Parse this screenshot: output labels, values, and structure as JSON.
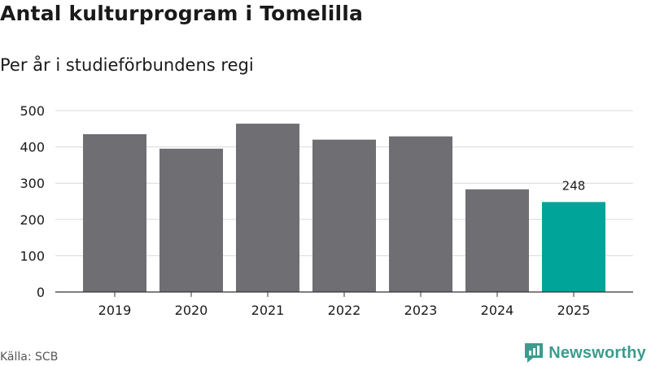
{
  "header": {
    "title": "Antal kulturprogram i Tomelilla",
    "subtitle": "Per år i studieförbundens regi"
  },
  "footer": {
    "source": "Källa: SCB",
    "brand": "Newsworthy",
    "brand_icon": "newsworthy-logo-icon"
  },
  "colors": {
    "bar": "#6f6e73",
    "highlight": "#00a499",
    "grid": "#d9d9d9",
    "axis": "#333333",
    "brand": "#3a9c8e"
  },
  "chart_data": {
    "type": "bar",
    "title": "Antal kulturprogram i Tomelilla",
    "subtitle": "Per år i studieförbundens regi",
    "xlabel": "",
    "ylabel": "",
    "categories": [
      "2019",
      "2020",
      "2021",
      "2022",
      "2023",
      "2024",
      "2025"
    ],
    "values": [
      435,
      395,
      464,
      420,
      429,
      283,
      248
    ],
    "highlight_index": 6,
    "data_labels": [
      {
        "index": 6,
        "text": "248"
      }
    ],
    "ylim": [
      0,
      500
    ],
    "yticks": [
      0,
      100,
      200,
      300,
      400,
      500
    ],
    "grid": true,
    "legend": "none"
  }
}
